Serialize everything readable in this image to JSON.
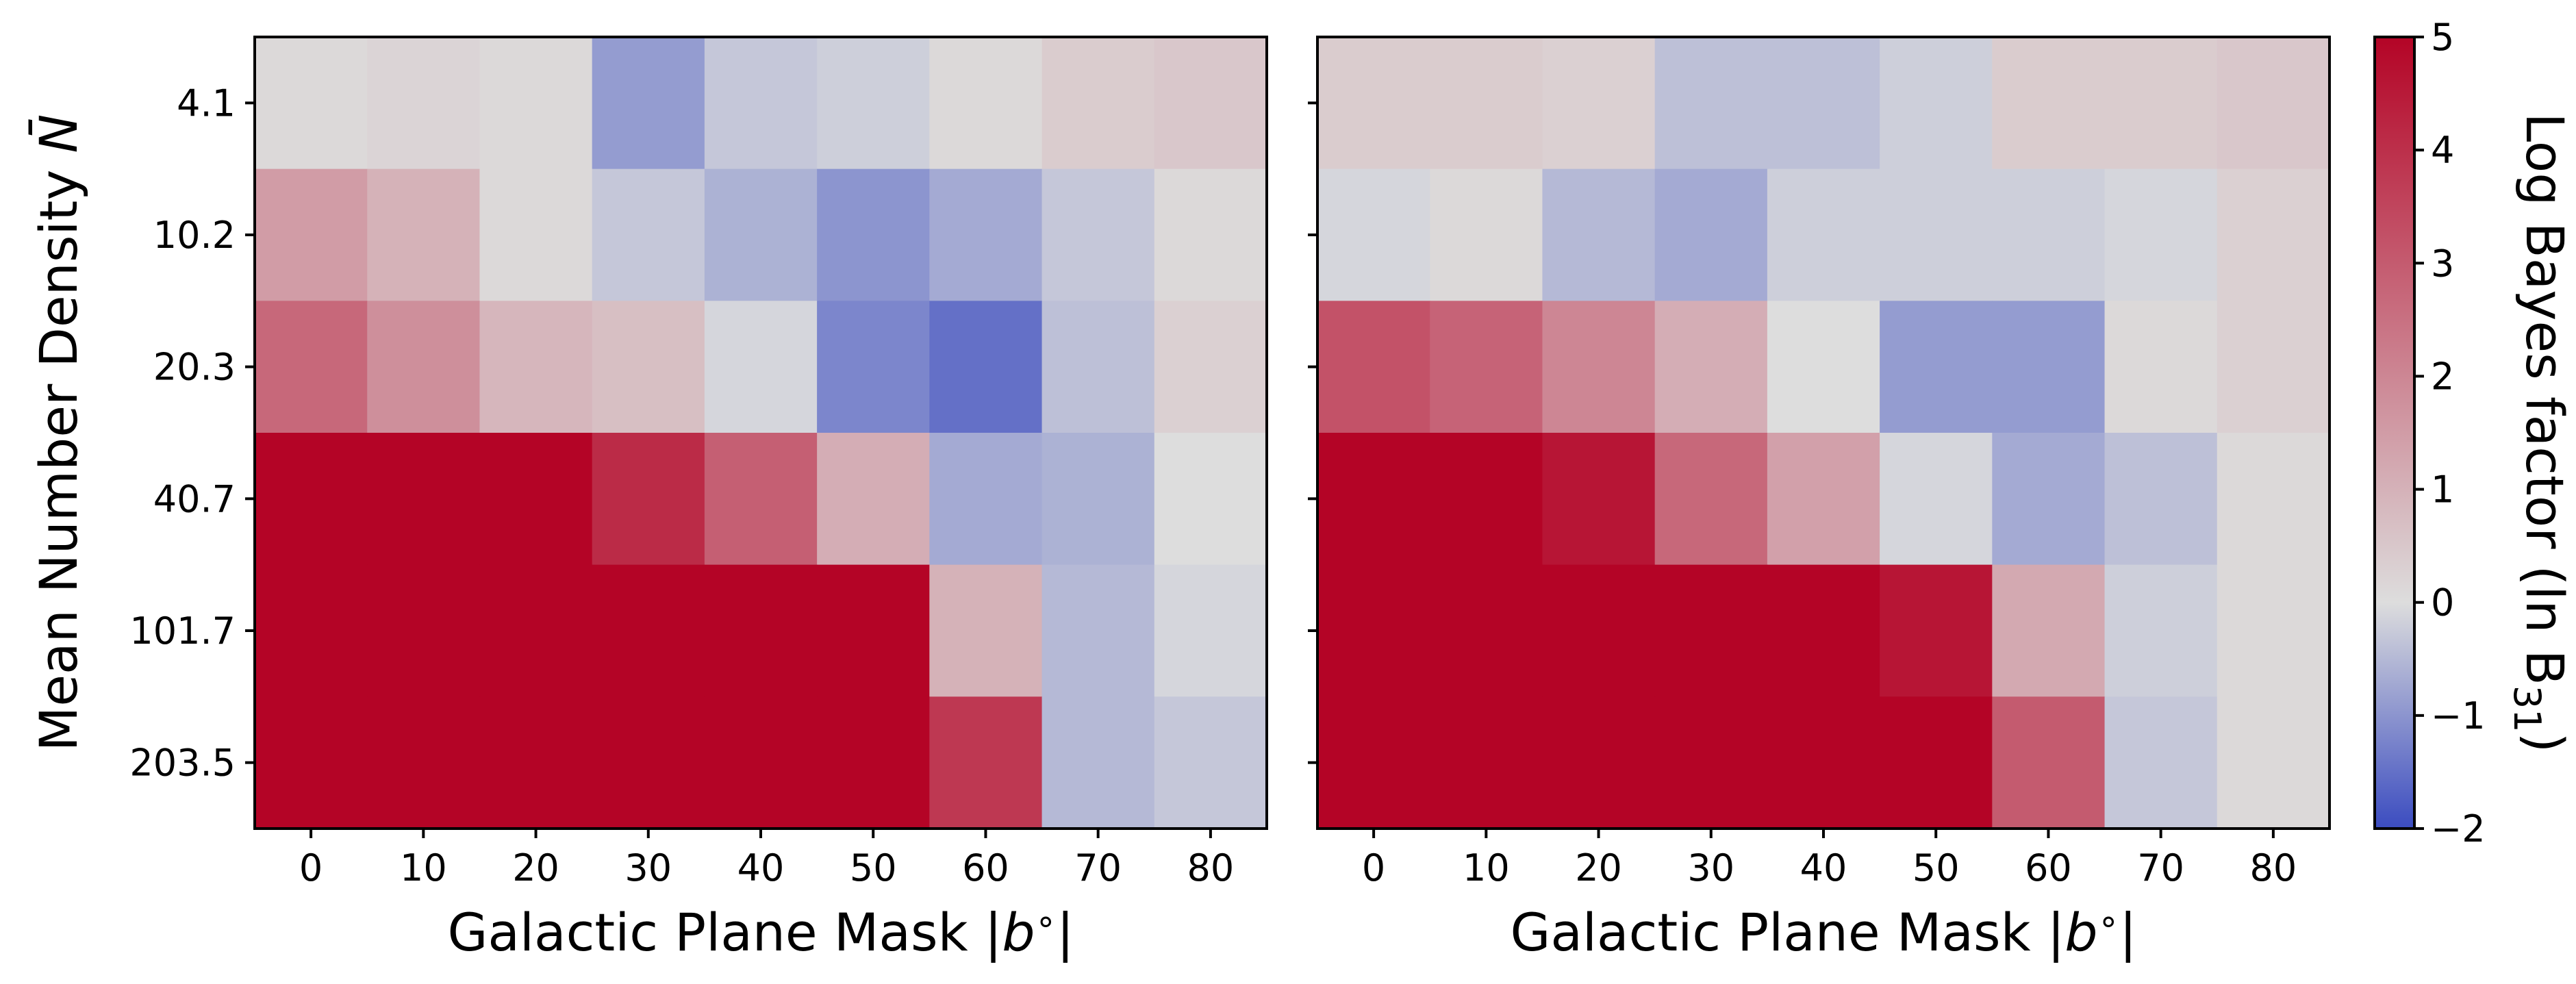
{
  "chart_data": [
    {
      "type": "heatmap",
      "x_categories": [
        "0",
        "10",
        "20",
        "30",
        "40",
        "50",
        "60",
        "70",
        "80"
      ],
      "y_categories": [
        "4.1",
        "10.2",
        "20.3",
        "40.7",
        "101.7",
        "203.5"
      ],
      "xlabel": "Galactic Plane Mask |b°|",
      "ylabel": "Mean Number Density N̄",
      "values": [
        [
          0.1,
          0.2,
          0.1,
          -0.9,
          -0.3,
          -0.2,
          0.1,
          0.4,
          0.5
        ],
        [
          1.5,
          1.0,
          0.1,
          -0.3,
          -0.6,
          -1.0,
          -0.7,
          -0.3,
          0.1
        ],
        [
          2.7,
          1.8,
          0.9,
          0.7,
          -0.1,
          -1.2,
          -1.5,
          -0.4,
          0.3
        ],
        [
          5.0,
          5.0,
          5.0,
          4.1,
          2.9,
          1.1,
          -0.7,
          -0.6,
          0.0
        ],
        [
          5.0,
          5.0,
          5.0,
          5.0,
          5.0,
          5.0,
          1.0,
          -0.5,
          -0.1
        ],
        [
          5.0,
          5.0,
          5.0,
          5.0,
          5.0,
          5.0,
          3.8,
          -0.5,
          -0.3
        ]
      ]
    },
    {
      "type": "heatmap",
      "x_categories": [
        "0",
        "10",
        "20",
        "30",
        "40",
        "50",
        "60",
        "70",
        "80"
      ],
      "y_categories": [
        "4.1",
        "10.2",
        "20.3",
        "40.7",
        "101.7",
        "203.5"
      ],
      "xlabel": "Galactic Plane Mask |b°|",
      "ylabel": "",
      "values": [
        [
          0.4,
          0.4,
          0.3,
          -0.4,
          -0.4,
          -0.2,
          0.4,
          0.4,
          0.5
        ],
        [
          -0.1,
          0.1,
          -0.5,
          -0.7,
          -0.2,
          -0.2,
          -0.2,
          -0.1,
          0.3
        ],
        [
          3.2,
          2.8,
          2.0,
          1.1,
          0.0,
          -0.9,
          -0.9,
          0.1,
          0.3
        ],
        [
          5.0,
          5.0,
          4.6,
          2.7,
          1.4,
          -0.1,
          -0.7,
          -0.4,
          0.1
        ],
        [
          5.0,
          5.0,
          5.0,
          5.0,
          5.0,
          4.6,
          1.2,
          -0.2,
          0.1
        ],
        [
          5.0,
          5.0,
          5.0,
          5.0,
          5.0,
          5.0,
          3.0,
          -0.3,
          0.1
        ]
      ]
    }
  ],
  "colorbar": {
    "label": "Log Bayes factor (ln B31)",
    "ticks": [
      "5",
      "4",
      "3",
      "2",
      "1",
      "0",
      "−1",
      "−2"
    ],
    "tick_values": [
      5,
      4,
      3,
      2,
      1,
      0,
      -1,
      -2
    ],
    "min": -2,
    "max": 5,
    "center": 0,
    "cmap": "coolwarm",
    "color_min": "#3b4cc0",
    "color_center": "#dddddd",
    "color_max": "#b40426"
  }
}
